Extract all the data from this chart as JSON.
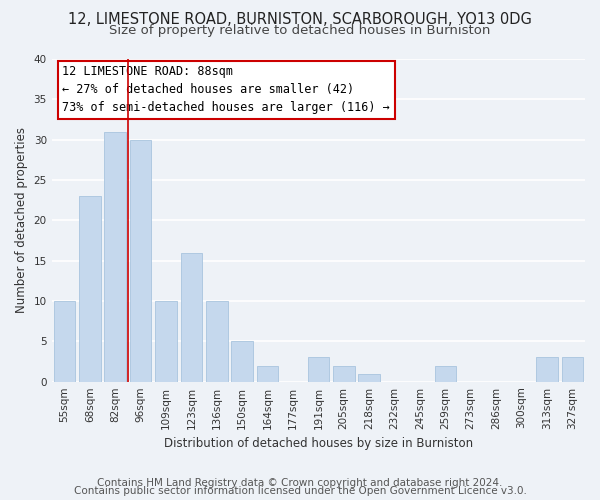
{
  "title": "12, LIMESTONE ROAD, BURNISTON, SCARBOROUGH, YO13 0DG",
  "subtitle": "Size of property relative to detached houses in Burniston",
  "xlabel": "Distribution of detached houses by size in Burniston",
  "ylabel": "Number of detached properties",
  "bar_labels": [
    "55sqm",
    "68sqm",
    "82sqm",
    "96sqm",
    "109sqm",
    "123sqm",
    "136sqm",
    "150sqm",
    "164sqm",
    "177sqm",
    "191sqm",
    "205sqm",
    "218sqm",
    "232sqm",
    "245sqm",
    "259sqm",
    "273sqm",
    "286sqm",
    "300sqm",
    "313sqm",
    "327sqm"
  ],
  "bar_values": [
    10,
    23,
    31,
    30,
    10,
    16,
    10,
    5,
    2,
    0,
    3,
    2,
    1,
    0,
    0,
    2,
    0,
    0,
    0,
    3,
    3
  ],
  "bar_color": "#c5d8ed",
  "bar_edge_color": "#a8c4de",
  "vline_color": "#cc0000",
  "annotation_text": "12 LIMESTONE ROAD: 88sqm\n← 27% of detached houses are smaller (42)\n73% of semi-detached houses are larger (116) →",
  "annotation_box_edgecolor": "#cc0000",
  "annotation_box_facecolor": "#ffffff",
  "ylim": [
    0,
    40
  ],
  "yticks": [
    0,
    5,
    10,
    15,
    20,
    25,
    30,
    35,
    40
  ],
  "footer1": "Contains HM Land Registry data © Crown copyright and database right 2024.",
  "footer2": "Contains public sector information licensed under the Open Government Licence v3.0.",
  "background_color": "#eef2f7",
  "grid_color": "#ffffff",
  "title_fontsize": 10.5,
  "subtitle_fontsize": 9.5,
  "label_fontsize": 8.5,
  "tick_fontsize": 7.5,
  "annotation_fontsize": 8.5,
  "footer_fontsize": 7.5
}
